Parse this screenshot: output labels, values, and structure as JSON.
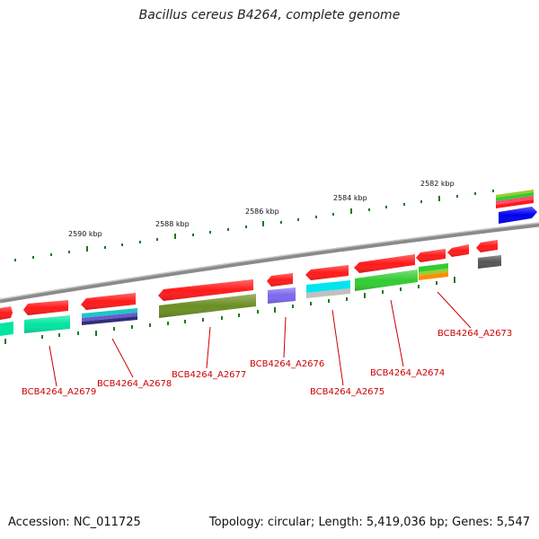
{
  "title": "Bacillus cereus B4264, complete genome",
  "footer": {
    "accession": "Accession: NC_011725",
    "summary": "Topology: circular; Length: 5,419,036 bp; Genes: 5,547"
  },
  "scale_labels": [
    "2590 kbp",
    "2588 kbp",
    "2586 kbp",
    "2584 kbp",
    "2582 kbp"
  ],
  "gene_labels": [
    "BCB4264_A2679",
    "BCB4264_A2678",
    "BCB4264_A2677",
    "BCB4264_A2676",
    "BCB4264_A2675",
    "BCB4264_A2674",
    "BCB4264_A2673"
  ],
  "colors": {
    "backbone": "#8a8a8a",
    "cds": "#ff1a1a",
    "tick": "#1a7a1a",
    "label": "#cc0000"
  }
}
